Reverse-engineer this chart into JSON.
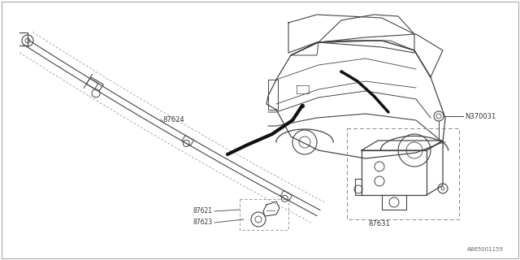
{
  "bg_color": "#ffffff",
  "line_color": "#444444",
  "dash_color": "#888888",
  "thick_black": "#111111",
  "footer_text": "A865001159",
  "label_color": "#333333",
  "fs": 5.5,
  "fig_w": 6.4,
  "fig_h": 3.2,
  "dpi": 100
}
